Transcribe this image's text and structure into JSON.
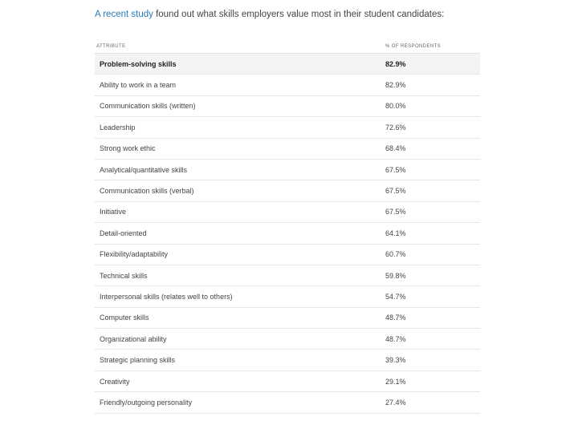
{
  "intro": {
    "link_text": "A recent study",
    "rest": " found out what skills employers value most in their student candidates:"
  },
  "table": {
    "headers": [
      "Attribute",
      "% of respondents"
    ],
    "rows": [
      {
        "attribute": "Problem-solving skills",
        "percent": "82.9%"
      },
      {
        "attribute": "Ability to work in a team",
        "percent": "82.9%"
      },
      {
        "attribute": "Communication skills (written)",
        "percent": "80.0%"
      },
      {
        "attribute": "Leadership",
        "percent": "72.6%"
      },
      {
        "attribute": "Strong work ethic",
        "percent": "68.4%"
      },
      {
        "attribute": "Analytical/quantitative skills",
        "percent": "67.5%"
      },
      {
        "attribute": "Communication skills (verbal)",
        "percent": "67.5%"
      },
      {
        "attribute": "Initiative",
        "percent": "67.5%"
      },
      {
        "attribute": "Detail-oriented",
        "percent": "64.1%"
      },
      {
        "attribute": "Flexibility/adaptability",
        "percent": "60.7%"
      },
      {
        "attribute": "Technical skills",
        "percent": "59.8%"
      },
      {
        "attribute": "Interpersonal skills (relates well to others)",
        "percent": "54.7%"
      },
      {
        "attribute": "Computer skills",
        "percent": "48.7%"
      },
      {
        "attribute": "Organizational ability",
        "percent": "48.7%"
      },
      {
        "attribute": "Strategic planning skills",
        "percent": "39.3%"
      },
      {
        "attribute": "Creativity",
        "percent": "29.1%"
      },
      {
        "attribute": "Friendly/outgoing personality",
        "percent": "27.4%"
      }
    ]
  },
  "colors": {
    "link": "#2a7ab8",
    "highlight_row": "#f4f4f4"
  }
}
